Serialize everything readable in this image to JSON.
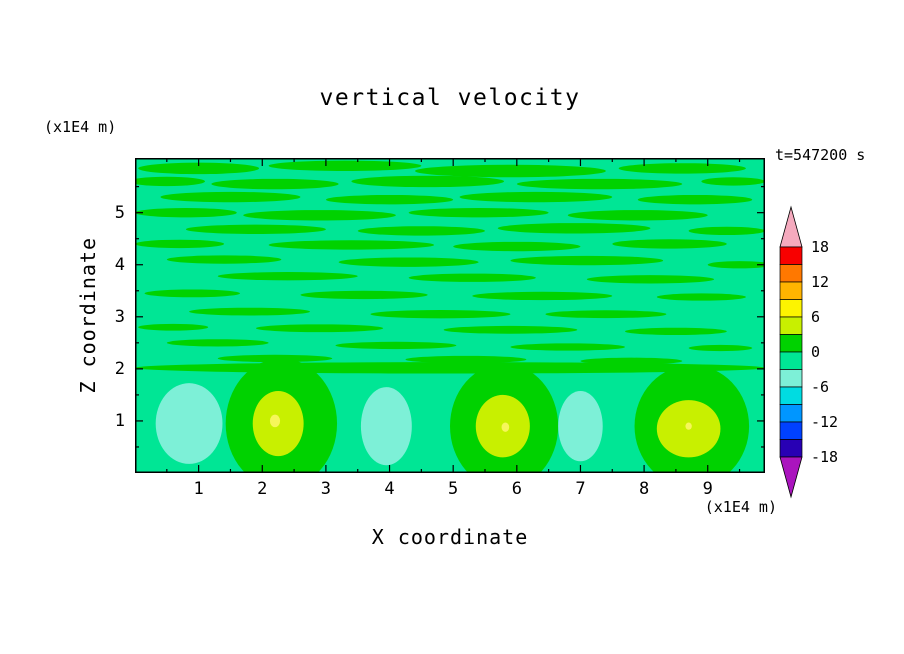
{
  "chart_data": {
    "type": "heatmap",
    "title": "vertical velocity",
    "timestamp": "t=547200 s",
    "xlabel": "X coordinate",
    "ylabel": "Z coordinate",
    "x_axis_unit": "(x1E4 m)",
    "y_axis_unit": "(x1E4 m)",
    "xlim": [
      0,
      9.9
    ],
    "ylim": [
      0,
      6.05
    ],
    "x_ticks": [
      "1",
      "2",
      "3",
      "4",
      "5",
      "6",
      "7",
      "8",
      "9"
    ],
    "y_ticks": [
      "1",
      "2",
      "3",
      "4",
      "5"
    ],
    "grid": false,
    "legend_position": "right-colorbar",
    "colorbar": {
      "tick_labels": [
        "18",
        "12",
        "6",
        "0",
        "-6",
        "-12",
        "-18"
      ],
      "over_color": "#f5aabe",
      "under_color": "#aa14be",
      "bands": [
        {
          "from": 15,
          "to": 18,
          "color": "#f80000"
        },
        {
          "from": 12,
          "to": 15,
          "color": "#ff7800"
        },
        {
          "from": 9,
          "to": 12,
          "color": "#ffb400"
        },
        {
          "from": 6,
          "to": 9,
          "color": "#fdf400"
        },
        {
          "from": 3,
          "to": 6,
          "color": "#c8f000"
        },
        {
          "from": 0,
          "to": 3,
          "color": "#00d200"
        },
        {
          "from": -3,
          "to": 0,
          "color": "#00e695"
        },
        {
          "from": -6,
          "to": -3,
          "color": "#7df0d7"
        },
        {
          "from": -9,
          "to": -6,
          "color": "#00dce1"
        },
        {
          "from": -12,
          "to": -9,
          "color": "#0096ff"
        },
        {
          "from": -15,
          "to": -12,
          "color": "#0041ff"
        },
        {
          "from": -18,
          "to": -15,
          "color": "#2800b4"
        }
      ]
    },
    "field": {
      "background_band": "-3..0",
      "background_color": "#00e695",
      "streak_color": "#00d200",
      "updraft_inner_color": "#c8f000",
      "updraft_core_color": "#f6f65a",
      "downdraft_color": "#7df0d7",
      "streaks": [
        [
          1.0,
          5.85,
          1.9,
          0.22
        ],
        [
          3.3,
          5.9,
          2.4,
          0.2
        ],
        [
          5.9,
          5.8,
          3.0,
          0.24
        ],
        [
          8.6,
          5.85,
          2.0,
          0.2
        ],
        [
          0.5,
          5.6,
          1.2,
          0.18
        ],
        [
          2.2,
          5.55,
          2.0,
          0.2
        ],
        [
          4.6,
          5.6,
          2.4,
          0.22
        ],
        [
          7.3,
          5.55,
          2.6,
          0.2
        ],
        [
          9.4,
          5.6,
          1.0,
          0.16
        ],
        [
          1.5,
          5.3,
          2.2,
          0.2
        ],
        [
          4.0,
          5.25,
          2.0,
          0.18
        ],
        [
          6.3,
          5.3,
          2.4,
          0.2
        ],
        [
          8.8,
          5.25,
          1.8,
          0.18
        ],
        [
          0.8,
          5.0,
          1.6,
          0.18
        ],
        [
          2.9,
          4.95,
          2.4,
          0.2
        ],
        [
          5.4,
          5.0,
          2.2,
          0.18
        ],
        [
          7.9,
          4.95,
          2.2,
          0.2
        ],
        [
          1.9,
          4.68,
          2.2,
          0.18
        ],
        [
          4.5,
          4.65,
          2.0,
          0.18
        ],
        [
          6.9,
          4.7,
          2.4,
          0.2
        ],
        [
          9.3,
          4.65,
          1.2,
          0.16
        ],
        [
          0.7,
          4.4,
          1.4,
          0.16
        ],
        [
          3.4,
          4.38,
          2.6,
          0.18
        ],
        [
          6.0,
          4.35,
          2.0,
          0.18
        ],
        [
          8.4,
          4.4,
          1.8,
          0.18
        ],
        [
          1.4,
          4.1,
          1.8,
          0.16
        ],
        [
          4.3,
          4.05,
          2.2,
          0.18
        ],
        [
          7.1,
          4.08,
          2.4,
          0.18
        ],
        [
          9.5,
          4.0,
          1.0,
          0.14
        ],
        [
          2.4,
          3.78,
          2.2,
          0.16
        ],
        [
          5.3,
          3.75,
          2.0,
          0.16
        ],
        [
          8.1,
          3.72,
          2.0,
          0.16
        ],
        [
          0.9,
          3.45,
          1.5,
          0.15
        ],
        [
          3.6,
          3.42,
          2.0,
          0.16
        ],
        [
          6.4,
          3.4,
          2.2,
          0.16
        ],
        [
          8.9,
          3.38,
          1.4,
          0.14
        ],
        [
          1.8,
          3.1,
          1.9,
          0.15
        ],
        [
          4.8,
          3.05,
          2.2,
          0.16
        ],
        [
          7.4,
          3.05,
          1.9,
          0.15
        ],
        [
          0.6,
          2.8,
          1.1,
          0.13
        ],
        [
          2.9,
          2.78,
          2.0,
          0.15
        ],
        [
          5.9,
          2.75,
          2.1,
          0.15
        ],
        [
          8.5,
          2.72,
          1.6,
          0.14
        ],
        [
          1.3,
          2.5,
          1.6,
          0.14
        ],
        [
          4.1,
          2.45,
          1.9,
          0.14
        ],
        [
          6.8,
          2.42,
          1.8,
          0.14
        ],
        [
          9.2,
          2.4,
          1.0,
          0.12
        ],
        [
          2.2,
          2.2,
          1.8,
          0.14
        ],
        [
          5.2,
          2.18,
          1.9,
          0.14
        ],
        [
          7.8,
          2.15,
          1.6,
          0.13
        ],
        [
          4.95,
          2.02,
          9.9,
          0.22
        ]
      ],
      "updrafts": [
        {
          "outer": [
            2.3,
            0.95,
            1.75,
            2.5
          ],
          "inner": [
            2.25,
            0.95,
            0.8,
            1.25
          ],
          "core": [
            2.2,
            1.0,
            0.16,
            0.24
          ]
        },
        {
          "outer": [
            5.8,
            0.9,
            1.7,
            2.4
          ],
          "inner": [
            5.78,
            0.9,
            0.85,
            1.2
          ],
          "core": [
            5.82,
            0.88,
            0.12,
            0.18
          ]
        },
        {
          "outer": [
            8.75,
            0.9,
            1.8,
            2.35
          ],
          "inner": [
            8.7,
            0.85,
            1.0,
            1.1
          ],
          "core": [
            8.7,
            0.9,
            0.1,
            0.14
          ]
        }
      ],
      "downdrafts": [
        [
          0.85,
          0.95,
          1.05,
          1.55
        ],
        [
          3.95,
          0.9,
          0.8,
          1.5
        ],
        [
          7.0,
          0.9,
          0.7,
          1.35
        ]
      ]
    }
  }
}
